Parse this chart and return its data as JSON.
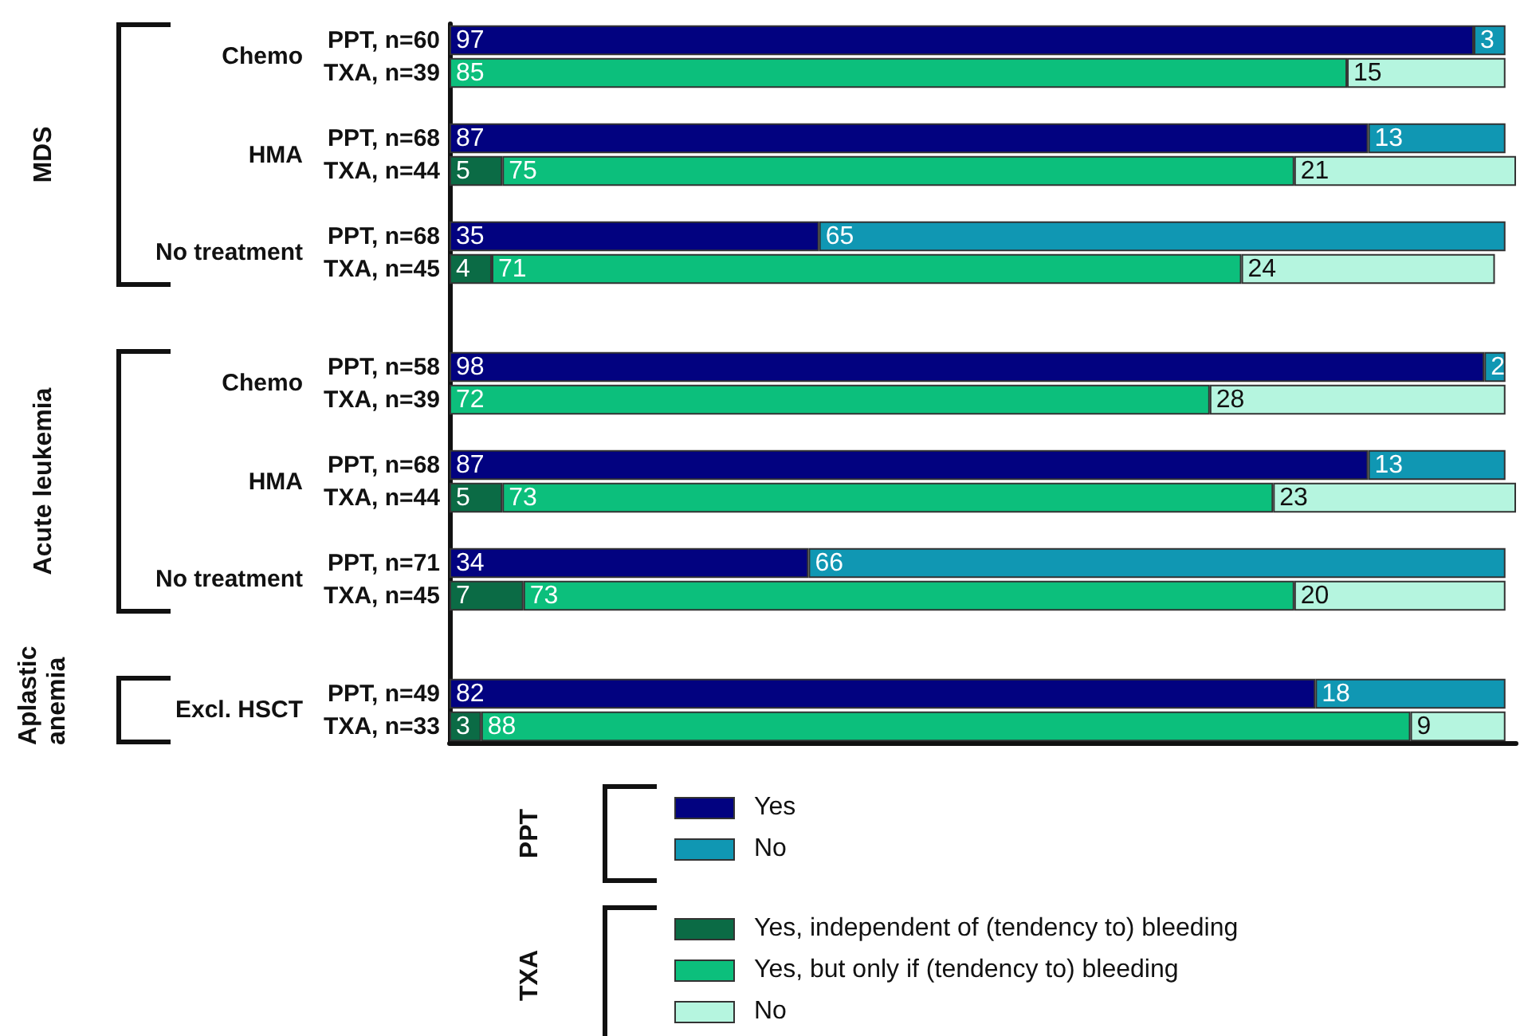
{
  "chart_data": {
    "type": "bar",
    "orientation": "horizontal",
    "stacked": true,
    "data_labels": true,
    "legend": "bottom",
    "tick_labels": "y",
    "categories": [
      "PPT, n=60",
      "TXA, n=39",
      null,
      "PPT, n=68",
      "TXA, n=44",
      null,
      "PPT, n=68",
      "TXA, n=45",
      null,
      null,
      "PPT, n=58",
      "TXA, n=39",
      null,
      "PPT, n=68",
      "TXA, n=44",
      null,
      "PPT, n=71",
      "TXA, n=45",
      null,
      null,
      "PPT, n=49",
      "TXA, n=33"
    ],
    "series": [
      {
        "name": "Yes",
        "color": "#020280",
        "values": [
          97,
          null,
          null,
          87,
          null,
          null,
          35,
          null,
          null,
          null,
          98,
          null,
          null,
          87,
          null,
          null,
          34,
          null,
          null,
          null,
          82,
          null
        ]
      },
      {
        "name": "No",
        "color": "#1097b3",
        "values": [
          3,
          null,
          null,
          13,
          null,
          null,
          65,
          null,
          null,
          null,
          2,
          null,
          null,
          13,
          null,
          null,
          66,
          null,
          null,
          null,
          18,
          null
        ]
      },
      {
        "name": "Yes, independent of (tendency to) bleeding",
        "color": "#0b6b45",
        "values": [
          null,
          null,
          null,
          null,
          5,
          null,
          null,
          4,
          null,
          null,
          null,
          null,
          null,
          null,
          5,
          null,
          null,
          7,
          null,
          null,
          null,
          3
        ]
      },
      {
        "name": "Yes, but only if (tendency to) bleeding",
        "color": "#0cbf7c",
        "values": [
          null,
          85,
          null,
          null,
          75,
          null,
          null,
          71,
          null,
          null,
          null,
          72,
          null,
          null,
          73,
          null,
          null,
          73,
          null,
          null,
          null,
          88
        ]
      },
      {
        "name": "No",
        "color": "#b5f5df",
        "values": [
          null,
          15,
          null,
          null,
          21,
          null,
          null,
          24,
          null,
          null,
          null,
          28,
          null,
          null,
          23,
          null,
          null,
          20,
          null,
          null,
          null,
          9
        ]
      }
    ],
    "annotations": [
      "Chemo",
      "HMA",
      "No treatment",
      "MDS",
      "Chemo",
      "HMA",
      "No treatment",
      "Acute leukemia",
      "Excl. HSCT",
      "Aplastic anemia",
      "PPT",
      "TXA"
    ]
  }
}
